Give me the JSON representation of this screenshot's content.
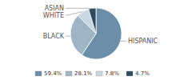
{
  "chart_data": {
    "type": "pie",
    "categories": [
      "HISPANIC",
      "BLACK",
      "WHITE",
      "ASIAN"
    ],
    "values": [
      59.4,
      28.1,
      7.8,
      4.7
    ],
    "value_labels": [
      "59.4%",
      "28.1%",
      "7.8%",
      "4.7%"
    ],
    "colors": [
      "#6b8fa8",
      "#9db5c4",
      "#c8d8e2",
      "#2e4a5e"
    ],
    "legend": "bottom"
  }
}
